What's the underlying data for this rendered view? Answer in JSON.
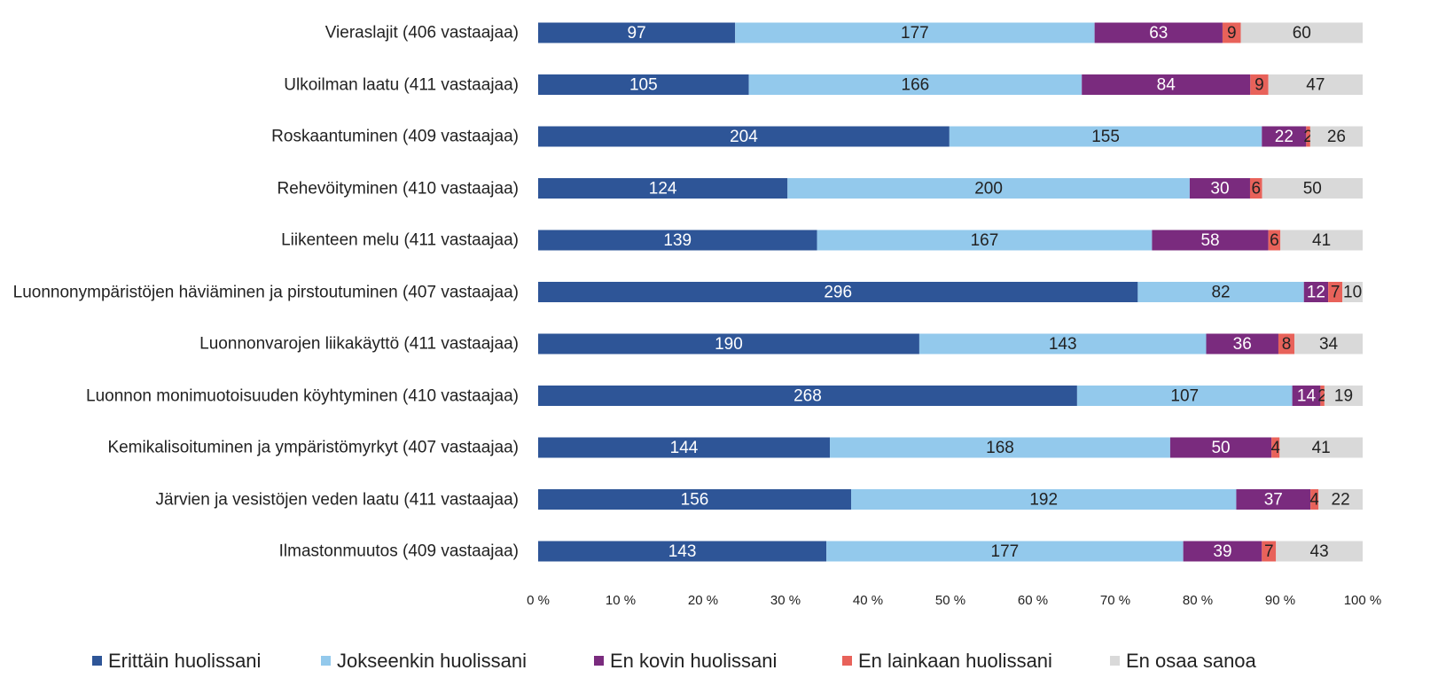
{
  "chart_data": {
    "type": "bar",
    "orientation": "horizontal",
    "stacking": "percent",
    "categories": [
      "Vieraslajit (406 vastaajaa)",
      "Ulkoilman laatu (411 vastaajaa)",
      "Roskaantuminen (409 vastaajaa)",
      "Rehevöityminen (410 vastaajaa)",
      "Liikenteen melu (411 vastaajaa)",
      "Luonnonympäristöjen häviäminen ja pirstoutuminen (407 vastaajaa)",
      "Luonnonvarojen liikakäyttö (411 vastaajaa)",
      "Luonnon monimuotoisuuden köyhtyminen (410 vastaajaa)",
      "Kemikalisoituminen ja ympäristömyrkyt (407 vastaajaa)",
      "Järvien ja vesistöjen veden laatu (411 vastaajaa)",
      "Ilmastonmuutos (409 vastaajaa)"
    ],
    "series": [
      {
        "name": "Erittäin huolissani",
        "color": "#2e5597",
        "label_color": "#ffffff",
        "values": [
          97,
          105,
          204,
          124,
          139,
          296,
          190,
          268,
          144,
          156,
          143
        ]
      },
      {
        "name": "Jokseenkin huolissani",
        "color": "#93c9ec",
        "label_color": "#222222",
        "values": [
          177,
          166,
          155,
          200,
          167,
          82,
          143,
          107,
          168,
          192,
          177
        ]
      },
      {
        "name": "En kovin huolissani",
        "color": "#7a2b7e",
        "label_color": "#ffffff",
        "values": [
          63,
          84,
          22,
          30,
          58,
          12,
          36,
          14,
          50,
          37,
          39
        ]
      },
      {
        "name": "En lainkaan huolissani",
        "color": "#e8625a",
        "label_color": "#222222",
        "values": [
          9,
          9,
          2,
          6,
          6,
          7,
          8,
          2,
          4,
          4,
          7
        ]
      },
      {
        "name": "En osaa sanoa",
        "color": "#d9d9d9",
        "label_color": "#222222",
        "values": [
          60,
          47,
          26,
          50,
          41,
          10,
          34,
          19,
          41,
          22,
          43
        ]
      }
    ],
    "xlim": [
      0,
      100
    ],
    "xticks": [
      {
        "value": 0,
        "label": "0 %"
      },
      {
        "value": 10,
        "label": "10 %"
      },
      {
        "value": 20,
        "label": "20 %"
      },
      {
        "value": 30,
        "label": "30 %"
      },
      {
        "value": 40,
        "label": "40 %"
      },
      {
        "value": 50,
        "label": "50 %"
      },
      {
        "value": 60,
        "label": "60 %"
      },
      {
        "value": 70,
        "label": "70 %"
      },
      {
        "value": 80,
        "label": "80 %"
      },
      {
        "value": 90,
        "label": "90 %"
      },
      {
        "value": 100,
        "label": "100 %"
      }
    ],
    "legend": "bottom"
  }
}
